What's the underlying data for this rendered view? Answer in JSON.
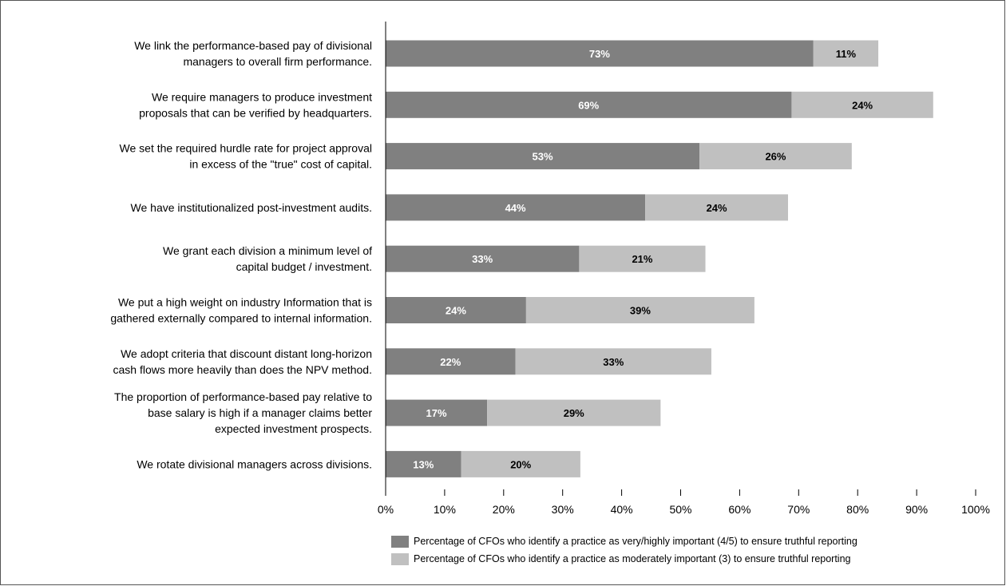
{
  "chart_data": {
    "type": "bar",
    "orientation": "horizontal",
    "stacked": true,
    "categories": [
      [
        "We link the performance-based pay of divisional",
        "managers to overall firm performance."
      ],
      [
        "We require managers to produce investment",
        "proposals that can be verified by headquarters."
      ],
      [
        "We set the required hurdle rate for project approval",
        "in excess of the \"true\" cost of capital."
      ],
      [
        "We have institutionalized post-investment audits."
      ],
      [
        "We grant each division a minimum level of",
        "capital budget / investment."
      ],
      [
        "We put a high weight on industry Information that is",
        "gathered externally compared to internal information."
      ],
      [
        "We adopt criteria that discount distant long-horizon",
        "cash flows more heavily than  does the NPV method."
      ],
      [
        "The proportion of performance-based pay relative to",
        "base salary is high if a manager claims better",
        "expected investment prospects."
      ],
      [
        "We rotate divisional managers across divisions."
      ]
    ],
    "series": [
      {
        "name": "Percentage of CFOs who identify a practice as very/highly important (4/5) to ensure truthful reporting",
        "color": "#808080",
        "label_color": "#ffffff",
        "values": [
          72.5,
          68.8,
          53.2,
          44.0,
          32.8,
          23.8,
          22.0,
          17.2,
          12.8
        ],
        "labels": [
          "73%",
          "69%",
          "53%",
          "44%",
          "33%",
          "24%",
          "22%",
          "17%",
          "13%"
        ]
      },
      {
        "name": "Percentage of CFOs who identify a practice as moderately important (3) to ensure truthful reporting",
        "color": "#c0c0c0",
        "label_color": "#000000",
        "values": [
          11.0,
          24.0,
          25.8,
          24.2,
          21.4,
          38.7,
          33.2,
          29.4,
          20.2
        ],
        "labels": [
          "11%",
          "24%",
          "26%",
          "24%",
          "21%",
          "39%",
          "33%",
          "29%",
          "20%"
        ]
      }
    ],
    "xlim": [
      0,
      100
    ],
    "xticks": [
      0,
      10,
      20,
      30,
      40,
      50,
      60,
      70,
      80,
      90,
      100
    ],
    "xtick_labels": [
      "0%",
      "10%",
      "20%",
      "30%",
      "40%",
      "50%",
      "60%",
      "70%",
      "80%",
      "90%",
      "100%"
    ],
    "title": "",
    "xlabel": "",
    "ylabel": "",
    "grid": false,
    "legend_position": "bottom"
  }
}
